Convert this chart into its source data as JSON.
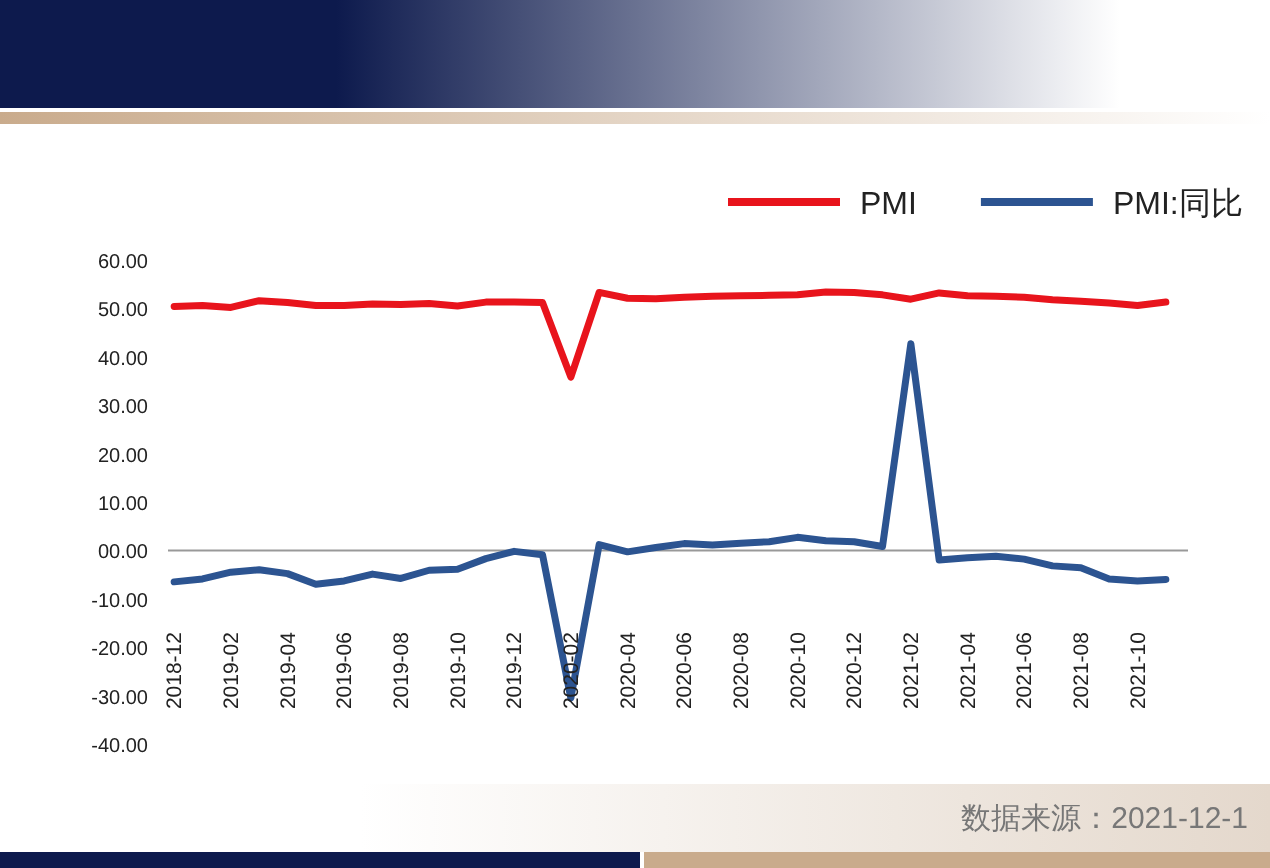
{
  "chart_data": {
    "type": "line",
    "categories": [
      "2018-12",
      null,
      "2019-02",
      null,
      "2019-04",
      null,
      "2019-06",
      null,
      "2019-08",
      null,
      "2019-10",
      null,
      "2019-12",
      null,
      "2020-02",
      null,
      "2020-04",
      null,
      "2020-06",
      null,
      "2020-08",
      null,
      "2020-10",
      null,
      "2020-12",
      null,
      "2021-02",
      null,
      "2021-04",
      null,
      "2021-06",
      null,
      "2021-08",
      null,
      "2021-10",
      null
    ],
    "series": [
      {
        "name": "PMI",
        "color": "#e8141c",
        "values": [
          50.4,
          50.6,
          50.2,
          51.6,
          51.2,
          50.6,
          50.6,
          50.9,
          50.8,
          51.0,
          50.5,
          51.3,
          51.3,
          51.2,
          35.8,
          53.3,
          52.1,
          52.0,
          52.3,
          52.5,
          52.6,
          52.7,
          52.8,
          53.4,
          53.3,
          52.8,
          51.9,
          53.2,
          52.6,
          52.5,
          52.3,
          51.8,
          51.5,
          51.1,
          50.6,
          51.3
        ]
      },
      {
        "name": "PMI:同比",
        "color": "#2c5491",
        "values": [
          -6.5,
          -5.9,
          -4.5,
          -4.0,
          -4.8,
          -7.0,
          -6.3,
          -4.9,
          -5.8,
          -4.1,
          -3.9,
          -1.7,
          -0.2,
          -0.9,
          -30.5,
          1.2,
          -0.3,
          0.6,
          1.4,
          1.1,
          1.5,
          1.8,
          2.7,
          2.0,
          1.8,
          0.8,
          42.7,
          -2.0,
          -1.5,
          -1.2,
          -1.8,
          -3.2,
          -3.6,
          -5.9,
          -6.3,
          -6.0
        ]
      }
    ],
    "ylim": [
      -40,
      60
    ],
    "yticks": [
      {
        "value": 60,
        "label": "60.00"
      },
      {
        "value": 50,
        "label": "50.00"
      },
      {
        "value": 40,
        "label": "40.00"
      },
      {
        "value": 30,
        "label": "30.00"
      },
      {
        "value": 20,
        "label": "20.00"
      },
      {
        "value": 10,
        "label": "10.00"
      },
      {
        "value": 0,
        "label": "00.00"
      },
      {
        "value": -10,
        "label": "-10.00"
      },
      {
        "value": -20,
        "label": "-20.00"
      },
      {
        "value": -30,
        "label": "-30.00"
      },
      {
        "value": -40,
        "label": "-40.00"
      }
    ],
    "grid": false,
    "ref_lines": [
      {
        "axis": "y",
        "value": 0,
        "color": "#999999"
      }
    ],
    "legend": "top right",
    "marker": "none",
    "line_style": "solid",
    "annotations": [
      "数据来源：2021-12-1"
    ]
  }
}
